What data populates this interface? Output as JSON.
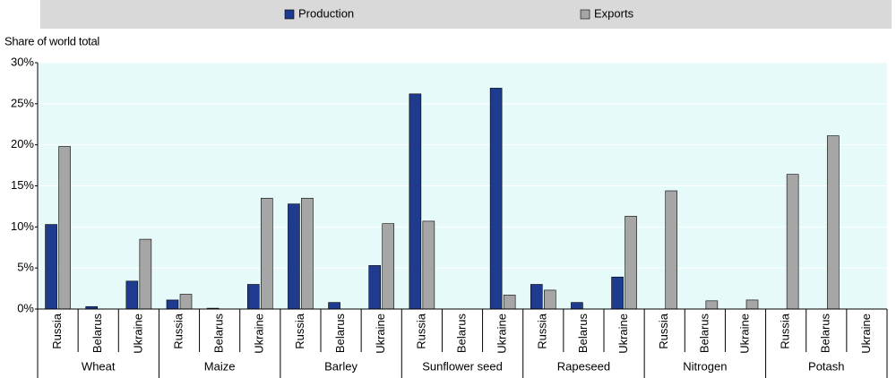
{
  "chart_data": {
    "type": "bar",
    "y_label": "Share of world total",
    "categories": [
      "Russia",
      "Belarus",
      "Ukraine",
      "Russia",
      "Belarus",
      "Ukraine",
      "Russia",
      "Belarus",
      "Ukraine",
      "Russia",
      "Belarus",
      "Ukraine",
      "Russia",
      "Belarus",
      "Ukraine",
      "Russia",
      "Belarus",
      "Ukraine",
      "Russia",
      "Belarus",
      "Ukraine"
    ],
    "groups": [
      "Wheat",
      "Maize",
      "Barley",
      "Sunflower seed",
      "Rapeseed",
      "Nitrogen",
      "Potash"
    ],
    "series": [
      {
        "name": "Production",
        "color": "#1f3b8f",
        "values": [
          10.3,
          0.3,
          3.4,
          1.1,
          0.1,
          3.0,
          12.8,
          0.8,
          5.3,
          26.2,
          0,
          26.9,
          3.0,
          0.8,
          3.9,
          0,
          0,
          0,
          0,
          0,
          0
        ]
      },
      {
        "name": "Exports",
        "color": "#a6a6a6",
        "values": [
          19.8,
          0,
          8.5,
          1.8,
          0,
          13.5,
          13.5,
          0,
          10.4,
          10.7,
          0,
          1.7,
          2.3,
          0,
          11.3,
          14.4,
          1.0,
          1.1,
          16.4,
          21.1,
          0
        ]
      }
    ],
    "ylim": [
      0,
      30
    ],
    "yticks": [
      {
        "value": 0,
        "label": "0%"
      },
      {
        "value": 5,
        "label": "5%"
      },
      {
        "value": 10,
        "label": "10%"
      },
      {
        "value": 15,
        "label": "15%"
      },
      {
        "value": 20,
        "label": "20%"
      },
      {
        "value": 25,
        "label": "25%"
      },
      {
        "value": 30,
        "label": "30%"
      }
    ],
    "grid": true,
    "legend": "top"
  }
}
